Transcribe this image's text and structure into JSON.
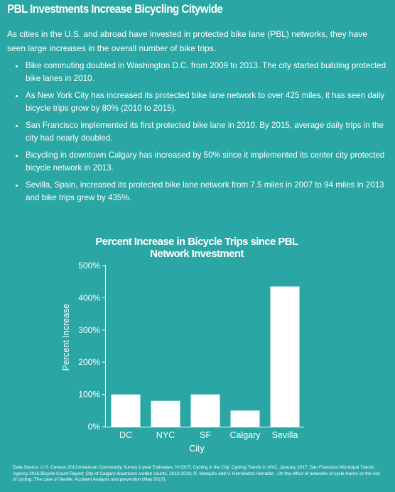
{
  "page_title": "PBL Investments Increase Bicycling Citywide",
  "intro": "As cities in the U.S. and abroad have invested in protected bike lane (PBL) networks, they have seen large increases in the overall number of bike trips.",
  "bullets": [
    "Bike commuting doubled in Washington D.C. from 2009 to 2013. The city started building protected bike lanes in 2010.",
    "As New York City has increased its protected bike lane network to over 425 miles, it has seen daily bicycle trips grow by 80% (2010 to 2015).",
    "San Francisco implemented its first protected bike lane in 2010. By 2015, average daily trips in the city had nearly doubled.",
    "Bicycling in downtown Calgary has increased by 50% since it implemented its center city protected bicycle network in 2013.",
    "Sevilla, Spain, increased its protected bike lane network from 7.5 miles in 2007 to 94 miles in 2013 and bike trips grew by 435%."
  ],
  "chart_data": {
    "type": "bar",
    "title_line1": "Percent Increase in Bicycle Trips since PBL",
    "title_line2": "Network Investment",
    "xlabel": "City",
    "ylabel": "Percent Increase",
    "categories": [
      "DC",
      "NYC",
      "SF",
      "Calgary",
      "Sevilla"
    ],
    "values": [
      100,
      80,
      100,
      50,
      435
    ],
    "ylim": [
      0,
      500
    ],
    "yticks": [
      0,
      100,
      200,
      300,
      400,
      500
    ],
    "ytick_labels": [
      "0%",
      "100%",
      "200%",
      "300%",
      "400%",
      "500%"
    ],
    "grid": false,
    "bar_color": "#ffffff"
  },
  "source": "Data Source: U.S. Census 2013 American Community Survey 1-year Estimates; NYDOT, Cycling in the City: Cycling Trends in NYC, January 2017; San Francisco Municipal Transit Agency 2016 Bicycle Count Report; City of Calgary downtown cordon counts, 2013-2016; R. Marqués and V. Hernández-Herrador , On the effect of networks of cycle-tracks on the risk of cycling: The case of Seville, Accident Analysis and prevention (May 2017).",
  "colors": {
    "background": "#2aa7a5",
    "text": "#ffffff"
  }
}
